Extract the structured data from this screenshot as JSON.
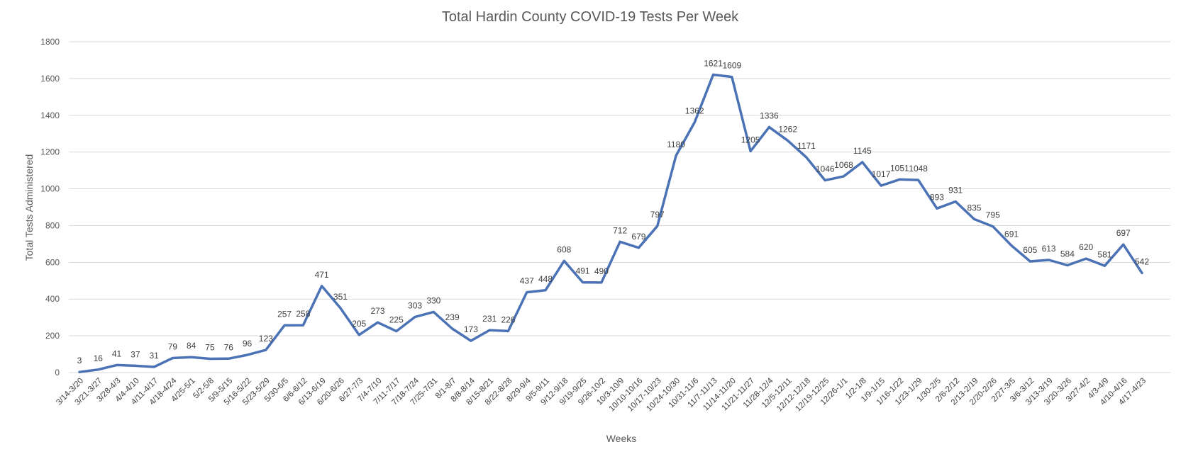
{
  "chart_data": {
    "type": "line",
    "title": "Total Hardin County COVID-19 Tests Per Week",
    "xlabel": "Weeks",
    "ylabel": "Total Tests Administered",
    "ylim": [
      0,
      1800
    ],
    "yticks": [
      0,
      200,
      400,
      600,
      800,
      1000,
      1200,
      1400,
      1600,
      1800
    ],
    "ytick_labels": [
      "0",
      "200",
      "400",
      "600",
      "800",
      "1000",
      "1200",
      "1400",
      "1600",
      "1800"
    ],
    "grid": true,
    "legend": "none",
    "line_color": "#4a72b5",
    "categories": [
      "3/14-3/20",
      "3/21-3/27",
      "3/28-4/3",
      "4/4-4/10",
      "4/11-4/17",
      "4/18-4/24",
      "4/25-5/1",
      "5/2-5/8",
      "5/9-5/15",
      "5/16-5/22",
      "5/23-5/29",
      "5/30-6/5",
      "6/6-6/12",
      "6/13-6/19",
      "6/20-6/26",
      "6/27-7/3",
      "7/4-7/10",
      "7/11-7/17",
      "7/18-7/24",
      "7/25-7/31",
      "8/1-8/7",
      "8/8-8/14",
      "8/15-8/21",
      "8/22-8/28",
      "8/29-9/4",
      "9/5-9/11",
      "9/12-9/18",
      "9/19-9/25",
      "9/26-10/2",
      "10/3-10/9",
      "10/10-10/16",
      "10/17-10/23",
      "10/24-10/30",
      "10/31-11/6",
      "11/7-11/13",
      "11/14-11/20",
      "11/21-11/27",
      "11/28-12/4",
      "12/5-12/11",
      "12/12-12/18",
      "12/19-12/25",
      "12/26-1/1",
      "1/2-1/8",
      "1/9-1/15",
      "1/16-1/22",
      "1/23-1/29",
      "1/30-2/5",
      "2/6-2/12",
      "2/13-2/19",
      "2/20-2/26",
      "2/27-3/5",
      "3/6-3/12",
      "3/13-3/19",
      "3/20-3/26",
      "3/27-4/2",
      "4/3-4/9",
      "4/10-4/16",
      "4/17-4/23"
    ],
    "series": [
      {
        "values": [
          3,
          16,
          41,
          37,
          31,
          79,
          84,
          75,
          76,
          96,
          123,
          257,
          258,
          471,
          351,
          205,
          273,
          225,
          303,
          330,
          239,
          173,
          231,
          226,
          437,
          448,
          608,
          491,
          490,
          712,
          679,
          797,
          1180,
          1362,
          1621,
          1609,
          1205,
          1336,
          1262,
          1171,
          1046,
          1068,
          1145,
          1017,
          1051,
          1048,
          893,
          931,
          835,
          795,
          691,
          605,
          613,
          584,
          620,
          581,
          697,
          542
        ]
      }
    ]
  }
}
